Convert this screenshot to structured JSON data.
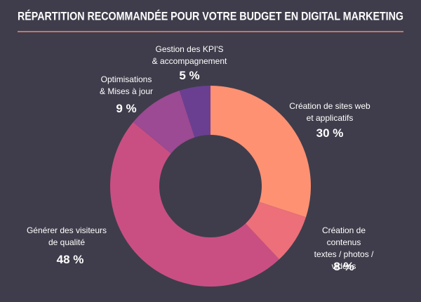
{
  "chart_data": {
    "type": "donut",
    "title": "RÉPARTITION RECOMMANDÉE POUR VOTRE BUDGET EN DIGITAL MARKETING",
    "categories": [
      "Création de sites web\net applicatifs",
      "Création de contenus\ntextes / photos / vidéos",
      "Générer des visiteurs\nde qualité",
      "Optimisations\n& Mises à jour",
      "Gestion des KPI'S\n& accompagnement"
    ],
    "values": [
      30,
      8,
      48,
      9,
      5
    ],
    "value_labels": [
      "30 %",
      "8 %",
      "48 %",
      "9 %",
      "5 %"
    ],
    "colors": [
      "#fd9172",
      "#ec6f7a",
      "#c94f82",
      "#9b4a93",
      "#6a3f92"
    ]
  }
}
